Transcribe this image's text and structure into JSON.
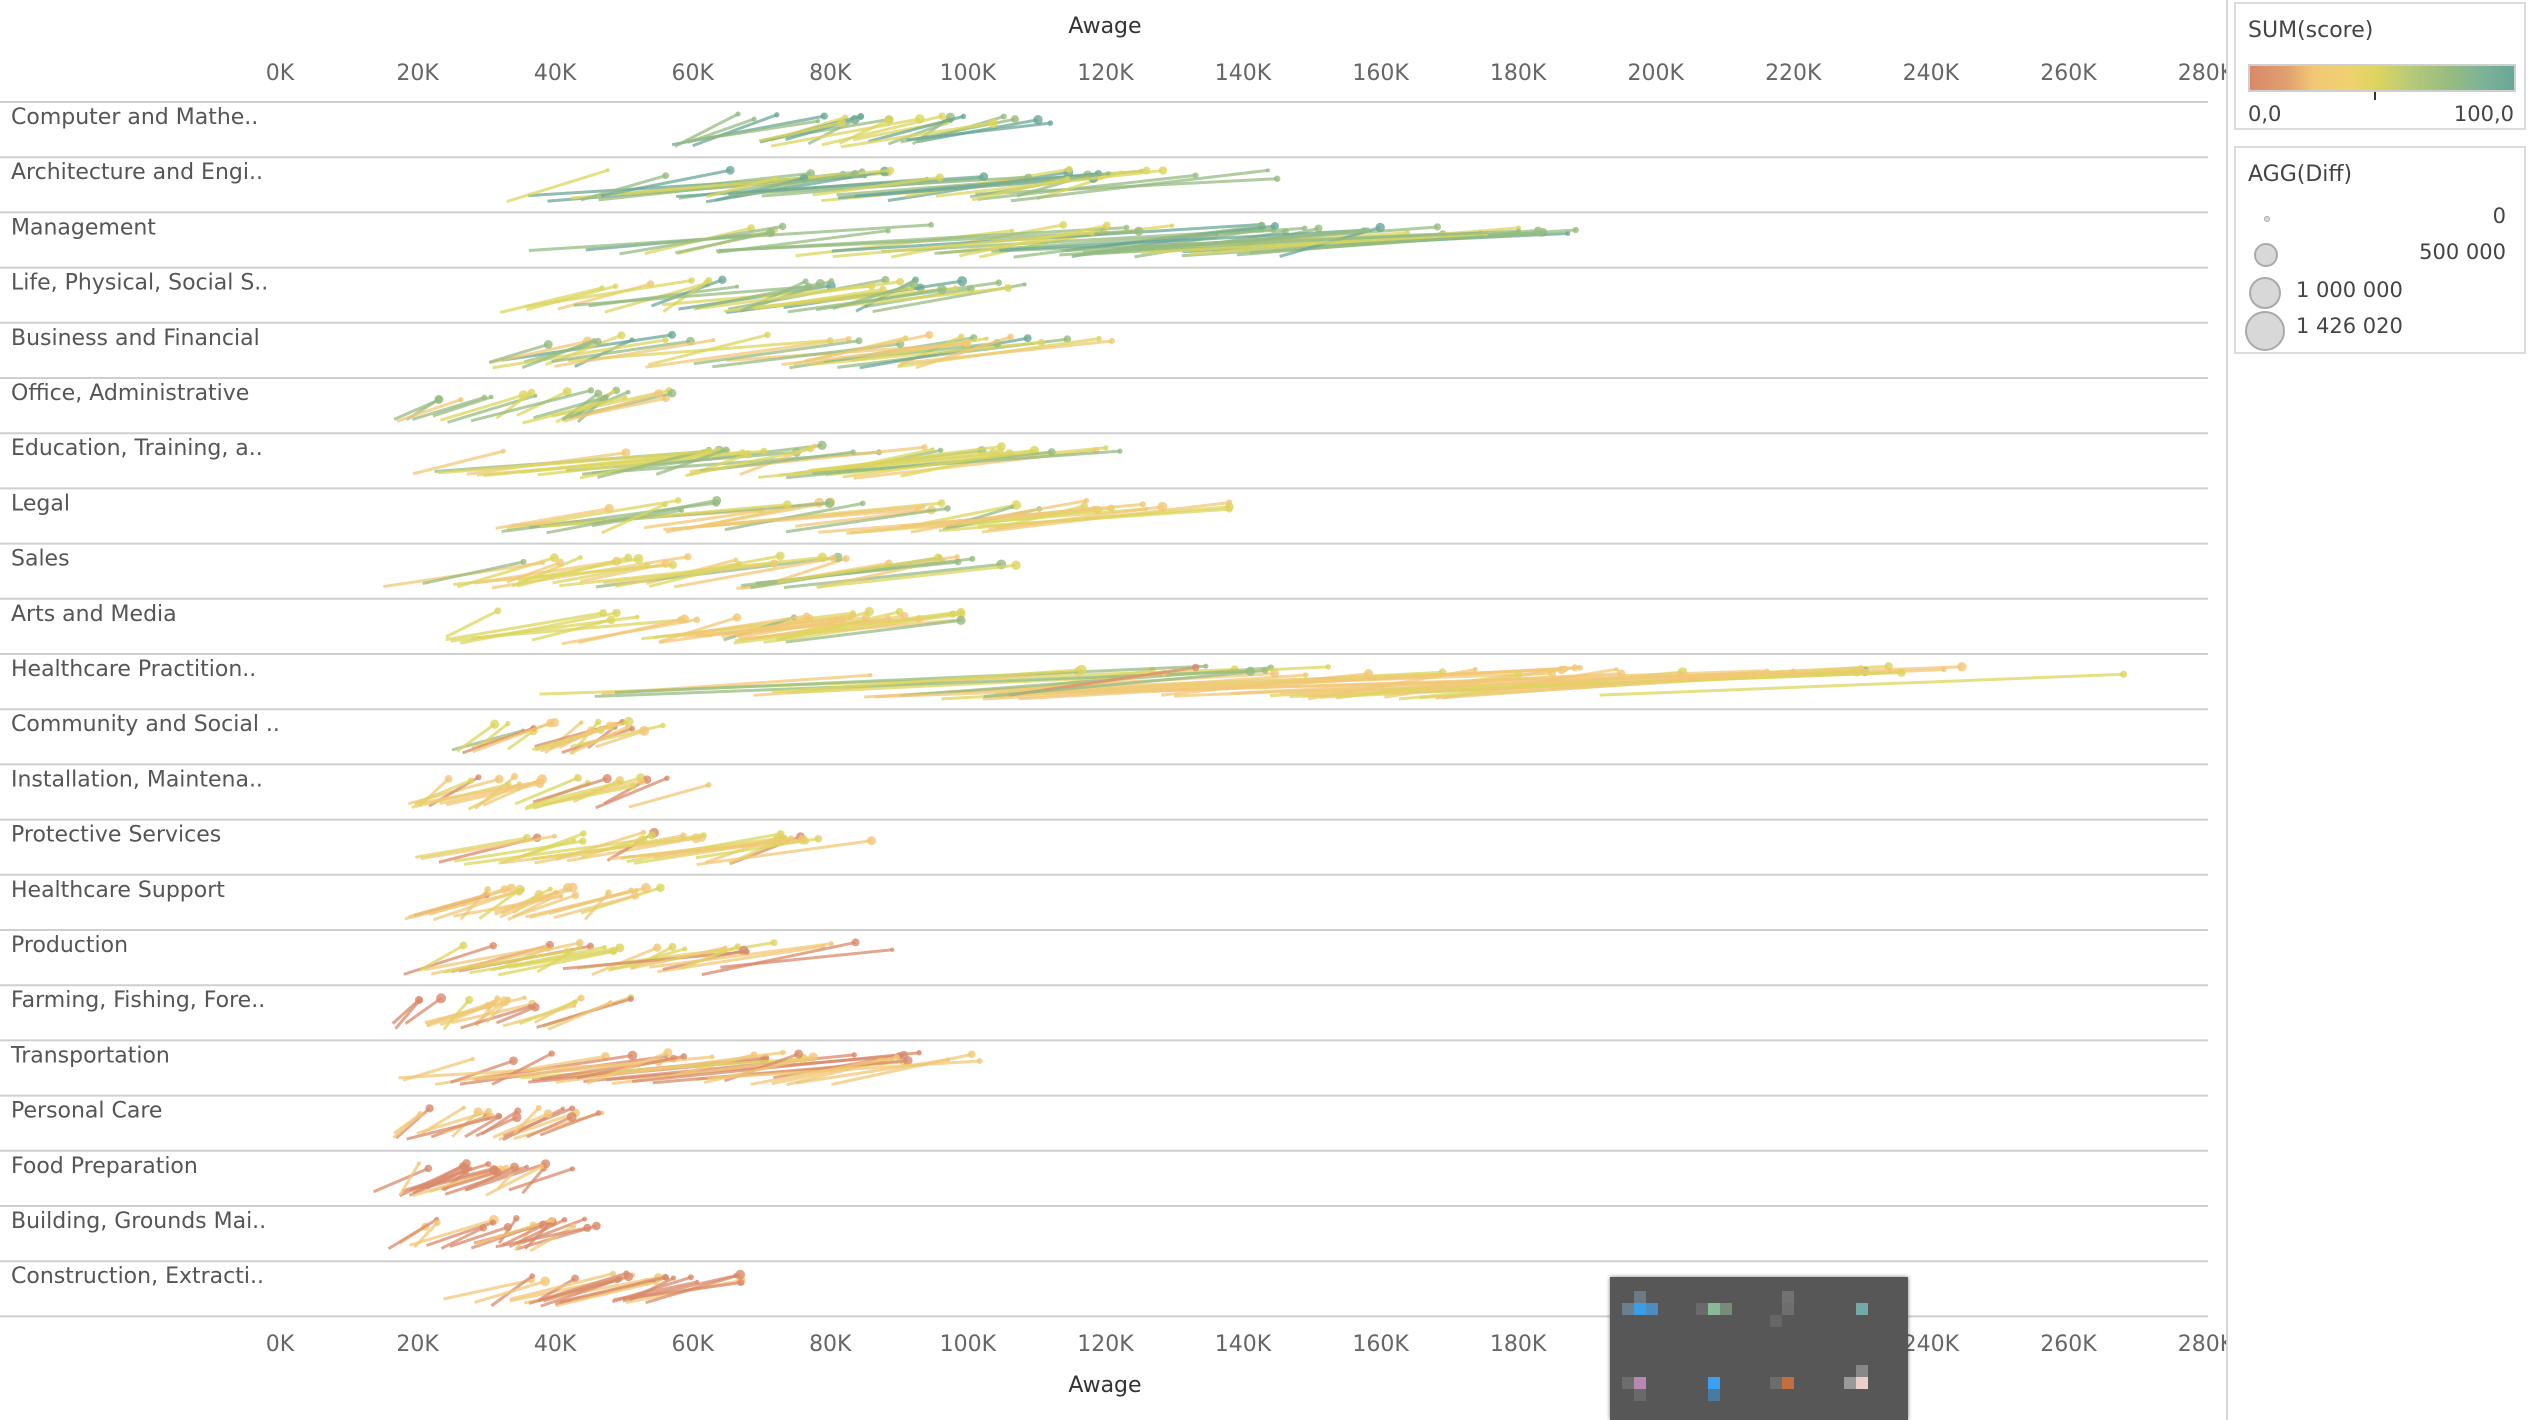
{
  "chart_data": {
    "type": "scatter",
    "xlabel": "Awage",
    "xlim": [
      0,
      280000
    ],
    "x_ticks": [
      "0K",
      "20K",
      "40K",
      "60K",
      "80K",
      "100K",
      "120K",
      "140K",
      "160K",
      "180K",
      "200K",
      "220K",
      "240K",
      "260K",
      "280K"
    ],
    "categories": [
      "Computer and Mathe..",
      "Architecture and Engi..",
      "Management",
      "Life, Physical, Social S..",
      "Business and Financial",
      "Office, Administrative",
      "Education, Training, a..",
      "Legal",
      "Sales",
      "Arts and Media",
      "Healthcare Practition..",
      "Community and Social ..",
      "Installation, Maintena..",
      "Protective Services",
      "Healthcare Support",
      "Production",
      "Farming, Fishing, Fore..",
      "Transportation",
      "Personal Care",
      "Food Preparation",
      "Building, Grounds Mai..",
      "Construction, Extracti.."
    ],
    "ranges": [
      {
        "min": 57000,
        "max": 112000
      },
      {
        "min": 30000,
        "max": 145000
      },
      {
        "min": 36000,
        "max": 193000
      },
      {
        "min": 29000,
        "max": 111000
      },
      {
        "min": 30000,
        "max": 121000
      },
      {
        "min": 16000,
        "max": 57000
      },
      {
        "min": 18000,
        "max": 123000
      },
      {
        "min": 30000,
        "max": 138000
      },
      {
        "min": 15000,
        "max": 107000
      },
      {
        "min": 18000,
        "max": 99000
      },
      {
        "min": 21000,
        "max": 268000
      },
      {
        "min": 23000,
        "max": 57000
      },
      {
        "min": 18000,
        "max": 66000
      },
      {
        "min": 18000,
        "max": 86000
      },
      {
        "min": 17000,
        "max": 59000
      },
      {
        "min": 16000,
        "max": 89000
      },
      {
        "min": 14000,
        "max": 51000
      },
      {
        "min": 16000,
        "max": 116000
      },
      {
        "min": 15000,
        "max": 50000
      },
      {
        "min": 13000,
        "max": 46000
      },
      {
        "min": 15000,
        "max": 46000
      },
      {
        "min": 21000,
        "max": 67000
      }
    ],
    "color_legend": {
      "title": "SUM(score)",
      "min_label": "0,0",
      "max_label": "100,0",
      "colors": [
        "#d9896a",
        "#f2c775",
        "#dcd55e",
        "#96bb80",
        "#69a797"
      ]
    },
    "size_legend": {
      "title": "AGG(Diff)",
      "labels": [
        "0",
        "500 000",
        "1 000 000",
        "1 426 020"
      ],
      "values": [
        0,
        500000,
        1000000,
        1426020
      ]
    },
    "grid": true
  },
  "taskbar_icon": "blurred-app-icons"
}
